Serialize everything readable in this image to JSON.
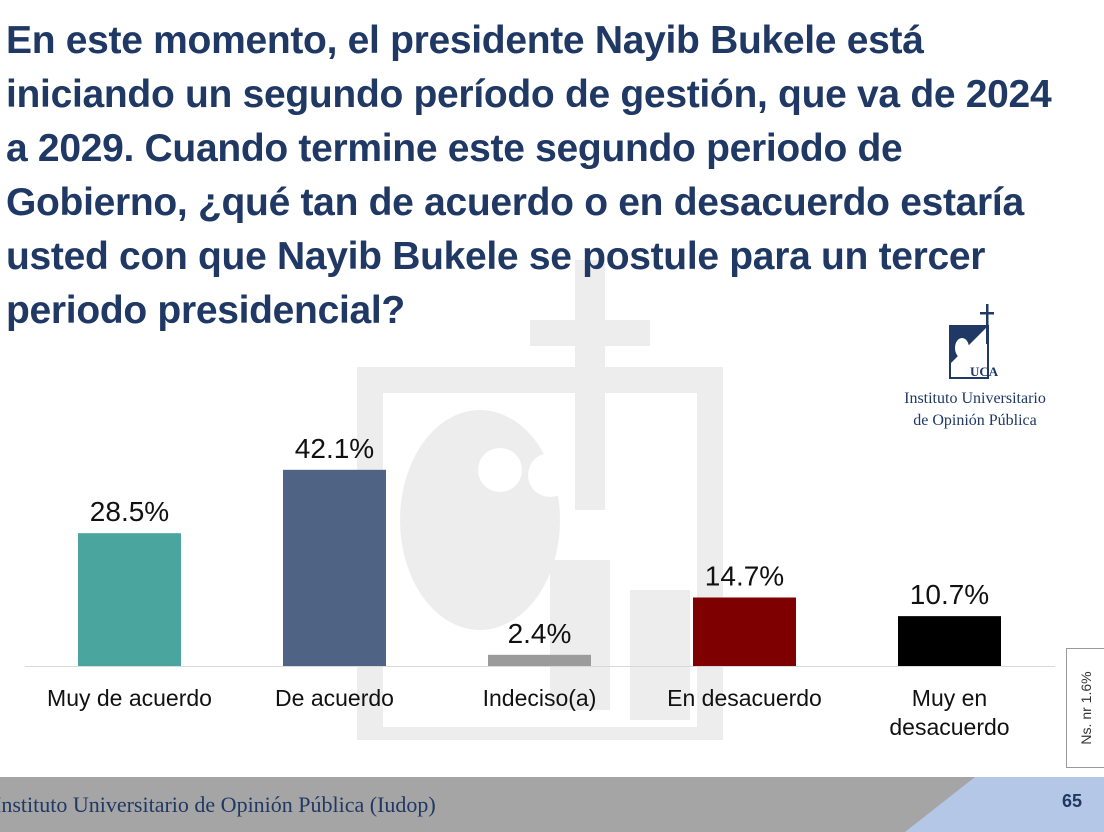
{
  "title": "En este momento, el presidente Nayib Bukele está iniciando un segundo período de gestión, que va de 2024 a 2029. Cuando termine este segundo periodo de Gobierno, ¿qué tan de acuerdo o en desacuerdo estaría usted con que Nayib Bukele se postule para un tercer periodo presidencial?",
  "logo": {
    "line1": "Instituto Universitario",
    "line2": "de Opinión Pública",
    "mark_text": "UCA"
  },
  "chart_data": {
    "type": "bar",
    "title": "",
    "xlabel": "",
    "ylabel": "",
    "ylim": [
      0,
      50
    ],
    "categories": [
      "Muy de acuerdo",
      "De acuerdo",
      "Indeciso(a)",
      "En desacuerdo",
      "Muy en desacuerdo"
    ],
    "category_lines": [
      [
        "Muy de acuerdo"
      ],
      [
        "De acuerdo"
      ],
      [
        "Indeciso(a)"
      ],
      [
        "En desacuerdo"
      ],
      [
        "Muy en",
        "desacuerdo"
      ]
    ],
    "values": [
      28.5,
      42.1,
      2.4,
      14.7,
      10.7
    ],
    "labels": [
      "28.5%",
      "42.1%",
      "2.4%",
      "14.7%",
      "10.7%"
    ],
    "colors": [
      "#4aa59e",
      "#4f6484",
      "#9b9b9b",
      "#7f0000",
      "#000000"
    ],
    "grid": false,
    "legend": "none"
  },
  "nsnr": "Ns. nr   1.6%",
  "footer": {
    "text": "Instituto Universitario de Opinión Pública (Iudop)",
    "page": "65"
  },
  "colors": {
    "title": "#1f3864",
    "footer_bg": "#a5a5a5",
    "footer_tab": "#b4c7e7"
  }
}
